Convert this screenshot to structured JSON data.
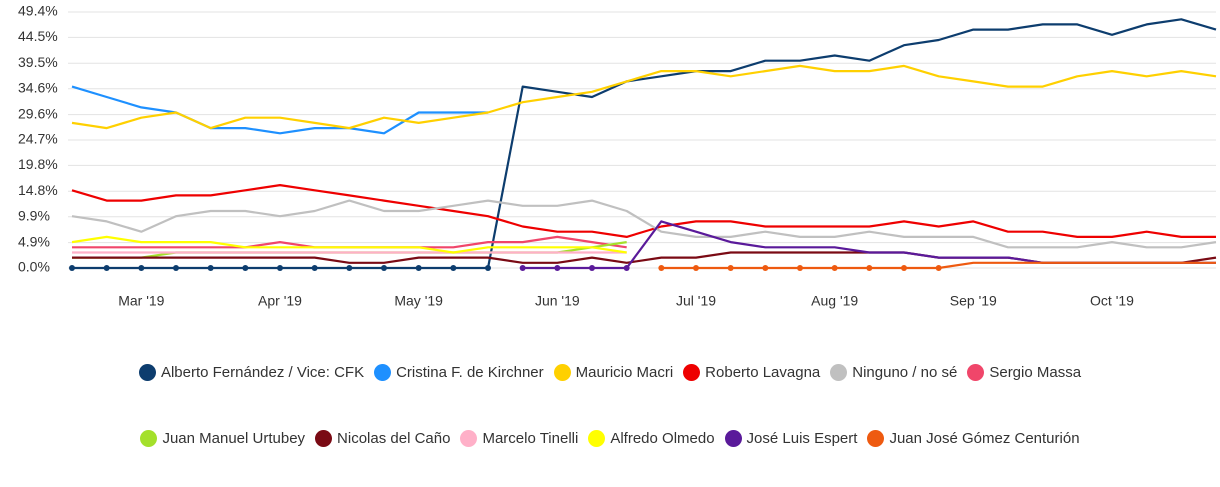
{
  "chart_data": {
    "type": "line",
    "categories": [
      null,
      null,
      "Mar '19",
      null,
      null,
      null,
      "Apr '19",
      null,
      null,
      null,
      "May '19",
      null,
      null,
      null,
      "Jun '19",
      null,
      null,
      null,
      "Jul '19",
      null,
      null,
      null,
      "Aug '19",
      null,
      null,
      null,
      "Sep '19",
      null,
      null,
      null,
      "Oct '19",
      null,
      null,
      null
    ],
    "ylim": [
      0,
      49.4
    ],
    "yticks": [
      {
        "value": 0,
        "label": "0.0%"
      },
      {
        "value": 4.9,
        "label": "4.9%"
      },
      {
        "value": 9.9,
        "label": "9.9%"
      },
      {
        "value": 14.8,
        "label": "14.8%"
      },
      {
        "value": 19.8,
        "label": "19.8%"
      },
      {
        "value": 24.7,
        "label": "24.7%"
      },
      {
        "value": 29.6,
        "label": "29.6%"
      },
      {
        "value": 34.6,
        "label": "34.6%"
      },
      {
        "value": 39.5,
        "label": "39.5%"
      },
      {
        "value": 44.5,
        "label": "44.5%"
      },
      {
        "value": 49.4,
        "label": "49.4%"
      }
    ],
    "grid": true,
    "series": [
      {
        "name": "Alberto Fernández / Vice: CFK",
        "color": "#0d3d6e",
        "values": [
          0,
          0,
          0,
          0,
          0,
          0,
          0,
          0,
          0,
          0,
          0,
          0,
          0,
          35,
          34,
          33,
          36,
          37,
          38,
          38,
          40,
          40,
          41,
          40,
          43,
          44,
          46,
          46,
          47,
          47,
          45,
          47,
          48,
          46
        ]
      },
      {
        "name": "Cristina F. de Kirchner",
        "color": "#1e90ff",
        "values": [
          35,
          33,
          31,
          30,
          27,
          27,
          26,
          27,
          27,
          26,
          30,
          30,
          30,
          null,
          null,
          null,
          null,
          null,
          null,
          null,
          null,
          null,
          null,
          null,
          null,
          null,
          null,
          null,
          null,
          null,
          null,
          null,
          null,
          null
        ]
      },
      {
        "name": "Mauricio Macri",
        "color": "#ffd000",
        "values": [
          28,
          27,
          29,
          30,
          27,
          29,
          29,
          28,
          27,
          29,
          28,
          29,
          30,
          32,
          33,
          34,
          36,
          38,
          38,
          37,
          38,
          39,
          38,
          38,
          39,
          37,
          36,
          35,
          35,
          37,
          38,
          37,
          38,
          37
        ]
      },
      {
        "name": "Roberto Lavagna",
        "color": "#ee0000",
        "values": [
          15,
          13,
          13,
          14,
          14,
          15,
          16,
          15,
          14,
          13,
          12,
          11,
          10,
          8,
          7,
          7,
          6,
          8,
          9,
          9,
          8,
          8,
          8,
          8,
          9,
          8,
          9,
          7,
          7,
          6,
          6,
          7,
          6,
          6
        ]
      },
      {
        "name": "Ninguno / no sé",
        "color": "#c0c0c0",
        "values": [
          10,
          9,
          7,
          10,
          11,
          11,
          10,
          11,
          13,
          11,
          11,
          12,
          13,
          12,
          12,
          13,
          11,
          7,
          6,
          6,
          7,
          6,
          6,
          7,
          6,
          6,
          6,
          4,
          4,
          4,
          5,
          4,
          4,
          5
        ]
      },
      {
        "name": "Sergio Massa",
        "color": "#f0466a",
        "values": [
          4,
          4,
          4,
          4,
          4,
          4,
          5,
          4,
          4,
          4,
          4,
          4,
          5,
          5,
          6,
          5,
          4,
          null,
          null,
          null,
          null,
          null,
          null,
          null,
          null,
          null,
          null,
          null,
          null,
          null,
          null,
          null,
          null,
          null
        ]
      },
      {
        "name": "Juan Manuel Urtubey",
        "color": "#a4e02b",
        "values": [
          2,
          2,
          2,
          3,
          3,
          3,
          3,
          3,
          3,
          3,
          3,
          3,
          3,
          3,
          3,
          4,
          5,
          null,
          null,
          null,
          null,
          null,
          null,
          null,
          null,
          null,
          null,
          null,
          null,
          null,
          null,
          null,
          null,
          null
        ]
      },
      {
        "name": "Nicolas del Caño",
        "color": "#7a0a14",
        "values": [
          2,
          2,
          2,
          2,
          2,
          2,
          2,
          2,
          1,
          1,
          2,
          2,
          2,
          1,
          1,
          2,
          1,
          2,
          2,
          3,
          3,
          3,
          3,
          3,
          3,
          2,
          2,
          2,
          1,
          1,
          1,
          1,
          1,
          2
        ]
      },
      {
        "name": "Marcelo Tinelli",
        "color": "#ffb0c8",
        "values": [
          3,
          3,
          3,
          3,
          3,
          3,
          3,
          3,
          3,
          3,
          3,
          3,
          3,
          3,
          3,
          3,
          3,
          null,
          null,
          null,
          null,
          null,
          null,
          null,
          null,
          null,
          null,
          null,
          null,
          null,
          null,
          null,
          null,
          null
        ]
      },
      {
        "name": "Alfredo Olmedo",
        "color": "#ffff00",
        "values": [
          5,
          6,
          5,
          5,
          5,
          4,
          4,
          4,
          4,
          4,
          4,
          3,
          4,
          4,
          4,
          4,
          3,
          null,
          null,
          null,
          null,
          null,
          null,
          null,
          null,
          null,
          null,
          null,
          null,
          null,
          null,
          null,
          null,
          null
        ]
      },
      {
        "name": "José Luis Espert",
        "color": "#5a1a9a",
        "values": [
          null,
          null,
          null,
          null,
          null,
          null,
          null,
          null,
          null,
          null,
          null,
          null,
          null,
          0,
          0,
          0,
          0,
          9,
          7,
          5,
          4,
          4,
          4,
          3,
          3,
          2,
          2,
          2,
          1,
          1,
          1,
          1,
          1,
          1
        ]
      },
      {
        "name": "Juan José Gómez Centurión",
        "color": "#ee5a10",
        "values": [
          null,
          null,
          null,
          null,
          null,
          null,
          null,
          null,
          null,
          null,
          null,
          null,
          null,
          null,
          null,
          null,
          null,
          0,
          0,
          0,
          0,
          0,
          0,
          0,
          0,
          0,
          1,
          1,
          1,
          1,
          1,
          1,
          1,
          1
        ]
      }
    ]
  }
}
